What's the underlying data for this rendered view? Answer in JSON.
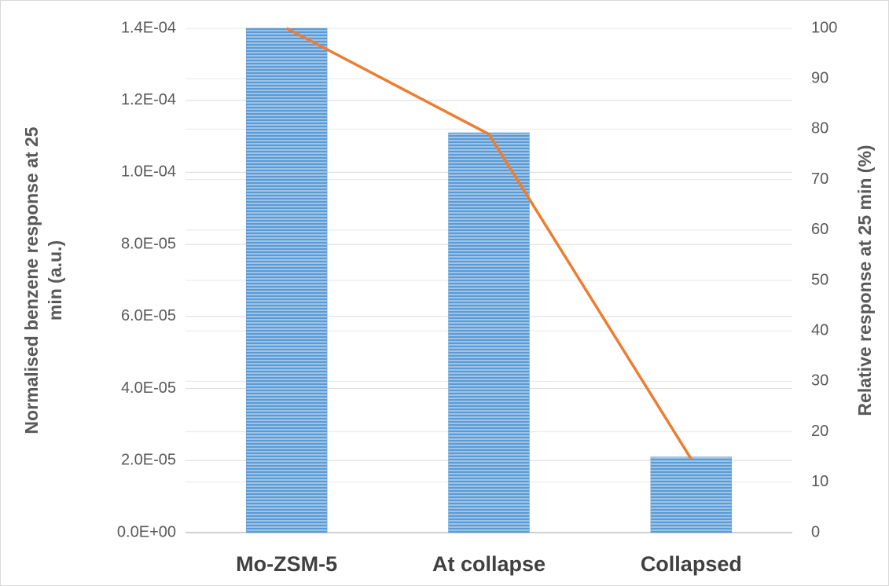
{
  "chart_data": {
    "type": "bar-line",
    "y_label": [
      "Normalised  benzene response at 25",
      "min (a.u.)"
    ],
    "y2_label": "Relative response at 25 min  (%)",
    "categories": [
      "Mo-ZSM-5",
      "At collapse",
      "Collapsed"
    ],
    "series": [
      {
        "type": "bar",
        "color": "#5b9bd5",
        "values": [
          0.00014,
          0.000111,
          2.1e-05
        ]
      },
      {
        "type": "line",
        "axis": "y2",
        "color": "#ed7d31",
        "values": [
          100,
          79,
          14.6
        ]
      }
    ],
    "ylim": [
      0,
      0.00014
    ],
    "yticks": [
      {
        "value": 0,
        "label": "0.0E+00"
      },
      {
        "value": 2e-05,
        "label": "2.0E-05"
      },
      {
        "value": 4e-05,
        "label": "4.0E-05"
      },
      {
        "value": 6e-05,
        "label": "6.0E-05"
      },
      {
        "value": 8e-05,
        "label": "8.0E-05"
      },
      {
        "value": 0.0001,
        "label": "1.0E-04"
      },
      {
        "value": 0.00012,
        "label": "1.2E-04"
      },
      {
        "value": 0.00014,
        "label": "1.4E-04"
      }
    ],
    "y2lim": [
      0,
      100
    ],
    "y2ticks": [
      0,
      10,
      20,
      30,
      40,
      50,
      60,
      70,
      80,
      90,
      100
    ],
    "grid": true
  }
}
